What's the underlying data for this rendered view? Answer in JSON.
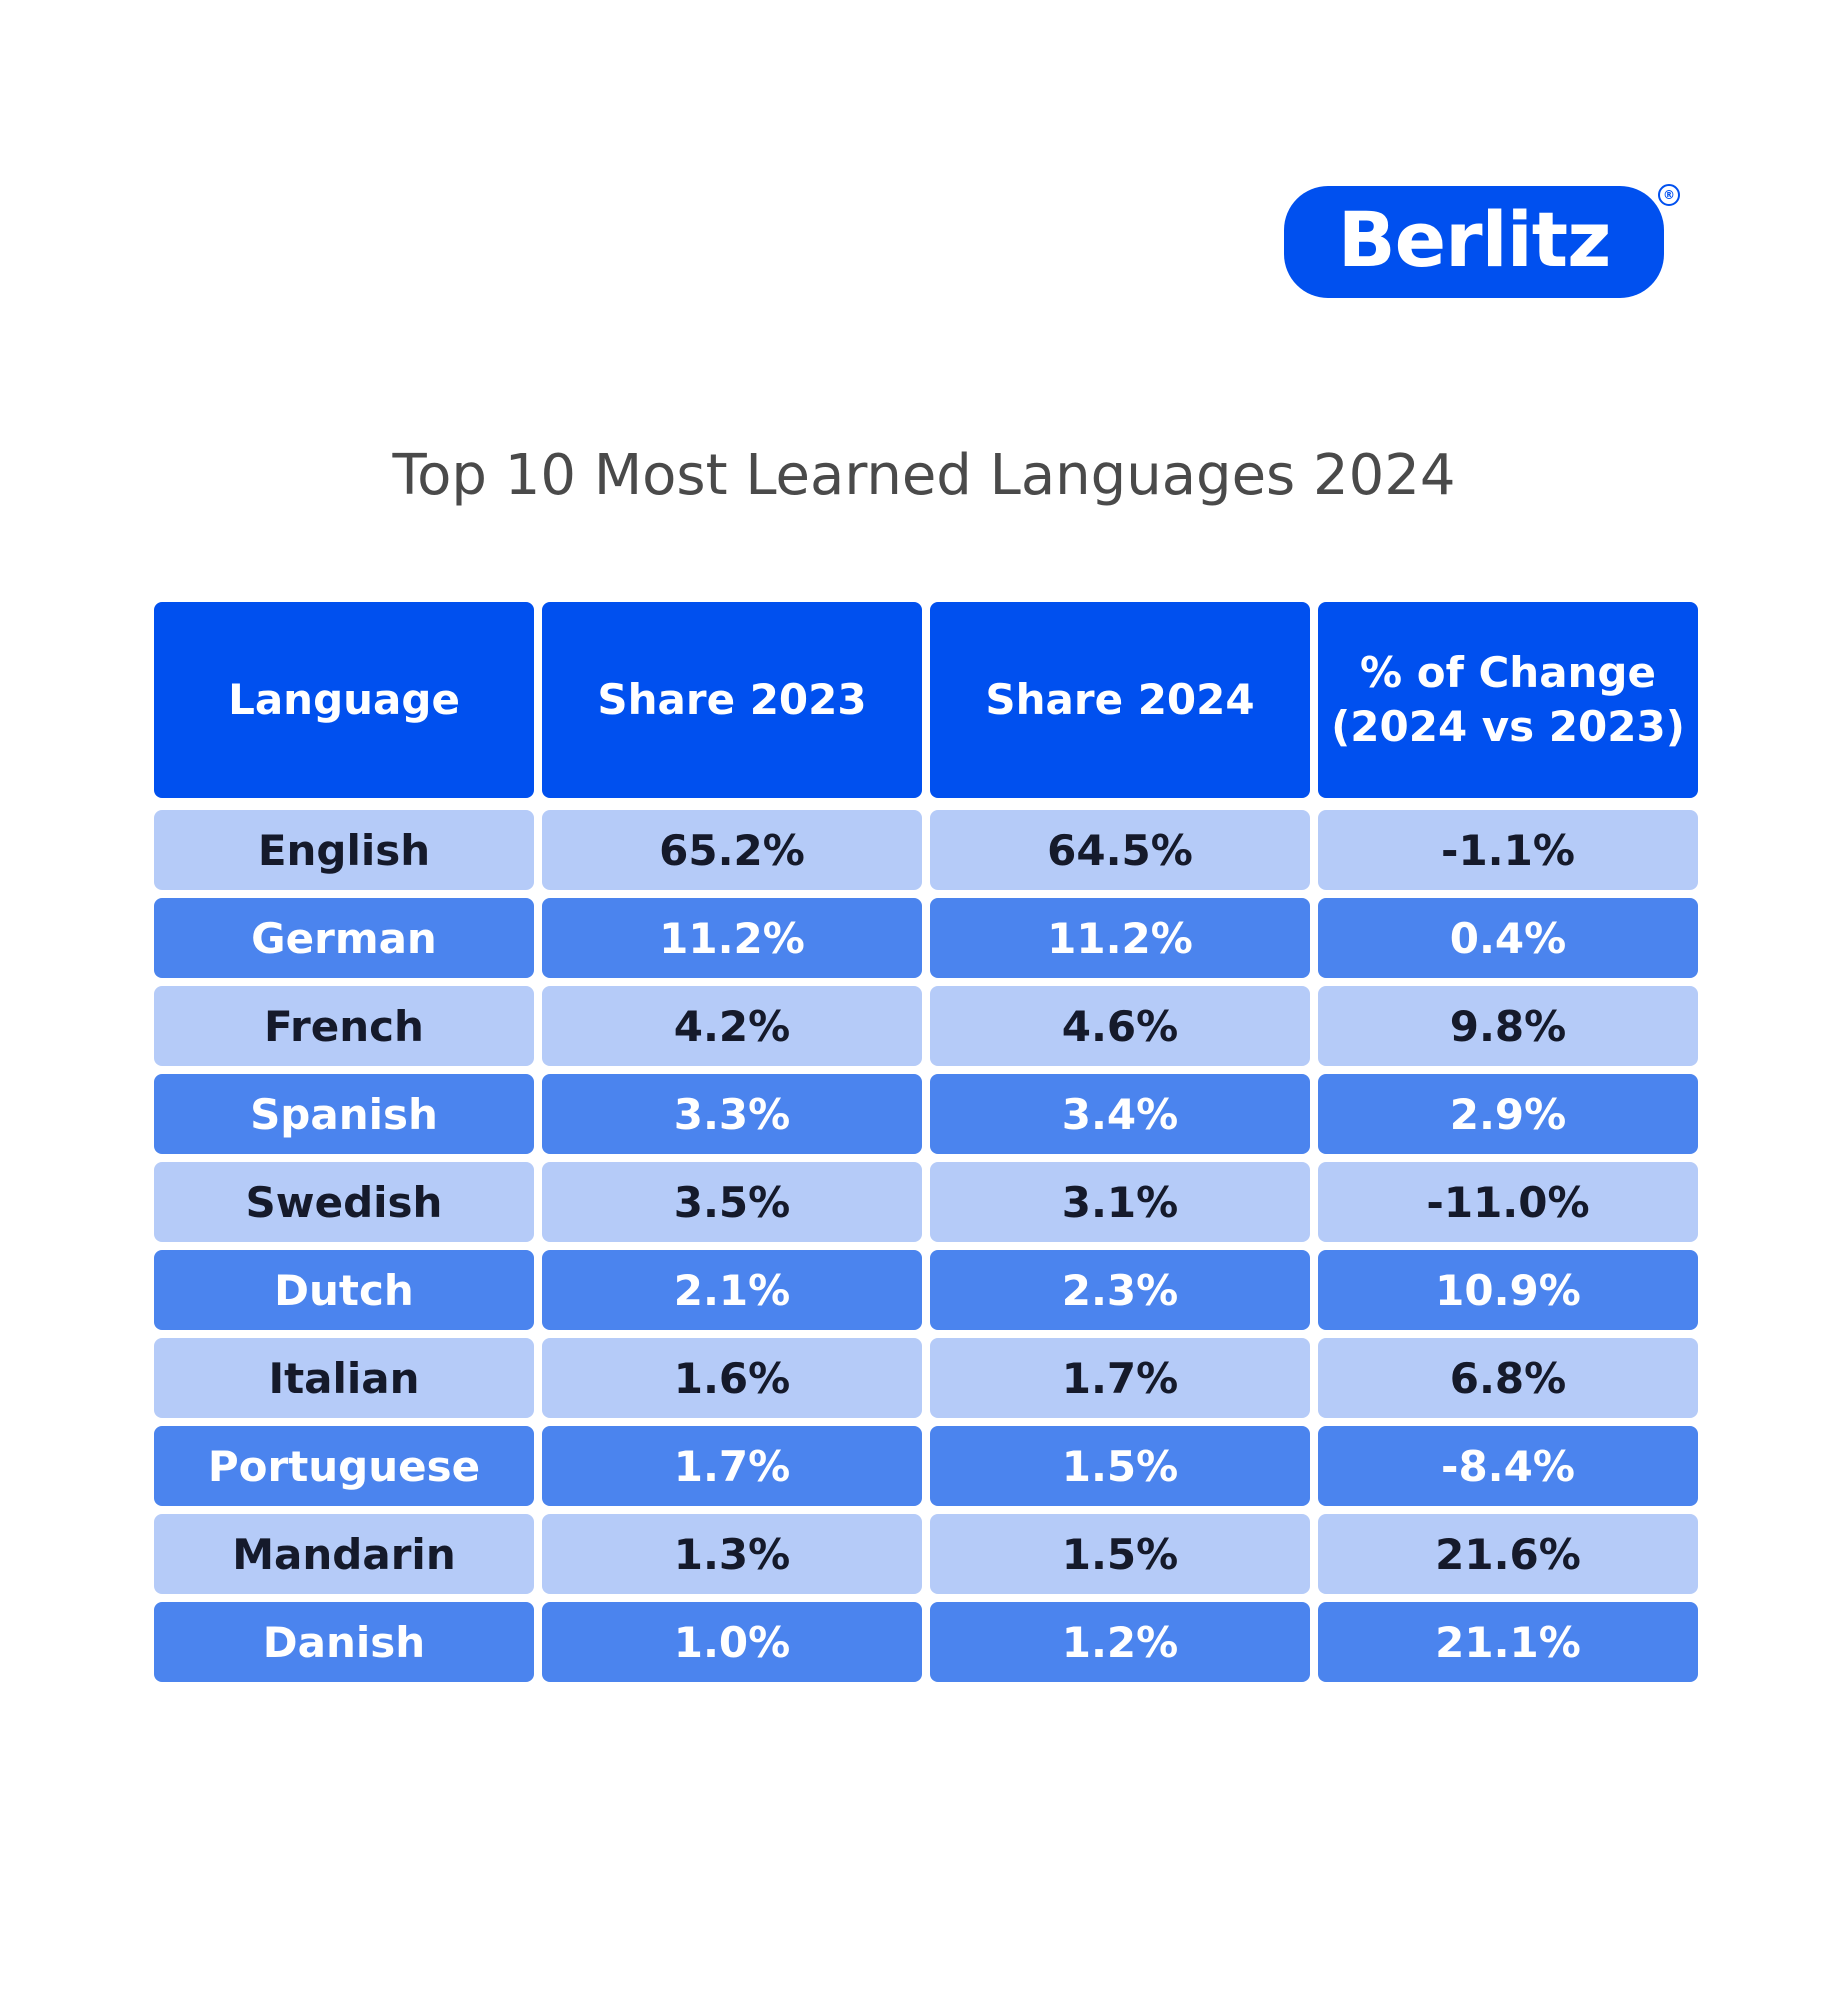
{
  "brand": {
    "logo_text": "Berlitz",
    "registered_mark": "®",
    "color": "#0050ef"
  },
  "chart_data": {
    "type": "table",
    "title": "Top 10 Most Learned Languages 2024",
    "columns": [
      "Language",
      "Share 2023",
      "Share 2024",
      "% of Change\n(2024 vs 2023)"
    ],
    "rows": [
      [
        "English",
        "65.2%",
        "64.5%",
        "-1.1%"
      ],
      [
        "German",
        "11.2%",
        "11.2%",
        "0.4%"
      ],
      [
        "French",
        "4.2%",
        "4.6%",
        "9.8%"
      ],
      [
        "Spanish",
        "3.3%",
        "3.4%",
        "2.9%"
      ],
      [
        "Swedish",
        "3.5%",
        "3.1%",
        "-11.0%"
      ],
      [
        "Dutch",
        "2.1%",
        "2.3%",
        "10.9%"
      ],
      [
        "Italian",
        "1.6%",
        "1.7%",
        "6.8%"
      ],
      [
        "Portuguese",
        "1.7%",
        "1.5%",
        "-8.4%"
      ],
      [
        "Mandarin",
        "1.3%",
        "1.5%",
        "21.6%"
      ],
      [
        "Danish",
        "1.0%",
        "1.2%",
        "21.1%"
      ]
    ],
    "colors": {
      "header": "#0050ef",
      "row_light": "#b5cbf8",
      "row_dark": "#4b84ee"
    }
  }
}
